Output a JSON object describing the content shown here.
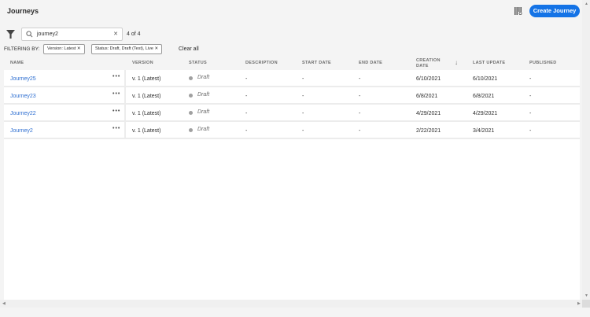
{
  "header": {
    "title": "Journeys",
    "create_label": "Create Journey"
  },
  "search": {
    "value": "journey2",
    "count": "4 of 4"
  },
  "filters": {
    "label": "FILTERING BY:",
    "chips": [
      "Version: Latest",
      "Status: Draft, Draft (Test), Live"
    ],
    "clear_all": "Clear all"
  },
  "columns": [
    "NAME",
    "VERSION",
    "STATUS",
    "DESCRIPTION",
    "START DATE",
    "END DATE",
    "CREATION DATE",
    "LAST UPDATE",
    "PUBLISHED"
  ],
  "sort": {
    "column": "CREATION DATE",
    "direction": "descending"
  },
  "rows": [
    {
      "name": "Journey25",
      "version": "v. 1 (Latest)",
      "status": "Draft",
      "description": "-",
      "start": "-",
      "end": "-",
      "created": "6/10/2021",
      "updated": "6/10/2021",
      "published": "-"
    },
    {
      "name": "Journey23",
      "version": "v. 1 (Latest)",
      "status": "Draft",
      "description": "-",
      "start": "-",
      "end": "-",
      "created": "6/8/2021",
      "updated": "6/8/2021",
      "published": "-"
    },
    {
      "name": "Journey22",
      "version": "v. 1 (Latest)",
      "status": "Draft",
      "description": "-",
      "start": "-",
      "end": "-",
      "created": "4/29/2021",
      "updated": "4/29/2021",
      "published": "-"
    },
    {
      "name": "Journey2",
      "version": "v. 1 (Latest)",
      "status": "Draft",
      "description": "-",
      "start": "-",
      "end": "-",
      "created": "2/22/2021",
      "updated": "3/4/2021",
      "published": "-"
    }
  ],
  "colors": {
    "accent": "#1473e6",
    "link": "#2d6ed1",
    "draft_dot": "#a0a0a0"
  }
}
